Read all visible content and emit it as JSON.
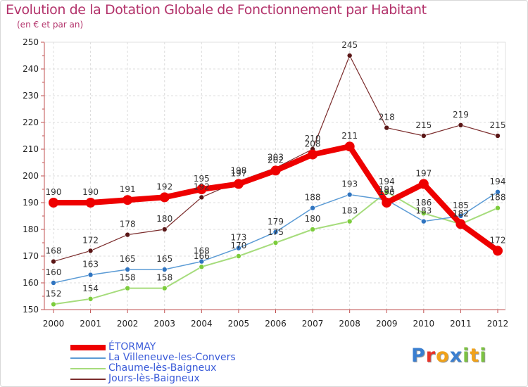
{
  "title": "Evolution de la Dotation Globale de Fonctionnement par Habitant",
  "subtitle": "(en € et par an)",
  "logo_text": "Proxiti",
  "chart_data": {
    "type": "line",
    "title": "Evolution de la Dotation Globale de Fonctionnement par Habitant",
    "subtitle": "(en € et par an)",
    "xlabel": "",
    "ylabel": "",
    "categories": [
      "2000",
      "2001",
      "2002",
      "2003",
      "2004",
      "2005",
      "2006",
      "2007",
      "2008",
      "2009",
      "2010",
      "2011",
      "2012"
    ],
    "ylim": [
      150,
      250
    ],
    "yticks": [
      150,
      160,
      170,
      180,
      190,
      200,
      210,
      220,
      230,
      240,
      250
    ],
    "grid": true,
    "legend_position": "bottom-left",
    "series": [
      {
        "name": "ÉTORMAY",
        "color": "#ee0000",
        "values": [
          190,
          190,
          191,
          192,
          195,
          197,
          202,
          208,
          211,
          190,
          197,
          182,
          172
        ]
      },
      {
        "name": "La Villeneuve-les-Convers",
        "color": "#5b9bd5",
        "marker": "#2f74c0",
        "values": [
          160,
          163,
          165,
          165,
          168,
          173,
          179,
          188,
          193,
          191,
          183,
          185,
          194
        ]
      },
      {
        "name": "Chaume-lès-Baigneux",
        "color": "#a6dc7c",
        "marker": "#7ccc3c",
        "values": [
          152,
          154,
          158,
          158,
          166,
          170,
          175,
          180,
          183,
          194,
          186,
          182,
          188
        ]
      },
      {
        "name": "Jours-lès-Baigneux",
        "color": "#7b2c2c",
        "marker": "#5a1616",
        "values": [
          168,
          172,
          178,
          180,
          192,
          198,
          203,
          210,
          245,
          218,
          215,
          219,
          215
        ]
      }
    ],
    "data_labels": [
      [
        "190",
        "190",
        "191",
        "192",
        "195",
        "197",
        "202",
        "208",
        "211",
        "190",
        "197",
        "182",
        "172"
      ],
      [
        "160",
        "163",
        "165",
        "165",
        "168",
        "173",
        "179",
        "188",
        "193",
        "191",
        "183",
        "185",
        "194"
      ],
      [
        "152",
        "154",
        "158",
        "158",
        "166",
        "170",
        "175",
        "180",
        "183",
        "194",
        "186",
        "182",
        "188"
      ],
      [
        "168",
        "172",
        "178",
        "180",
        "192",
        "198",
        "203",
        "210",
        "245",
        "218",
        "215",
        "219",
        "215"
      ]
    ]
  }
}
